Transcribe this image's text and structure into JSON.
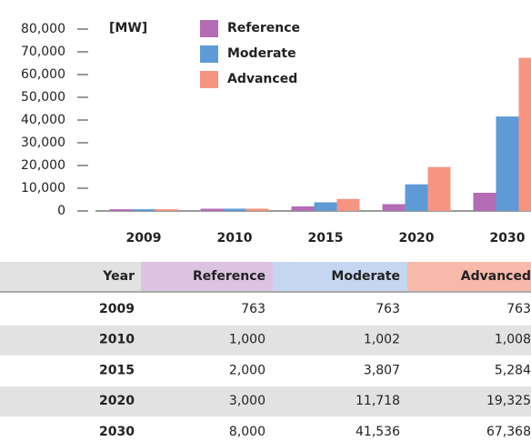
{
  "chart_data": {
    "type": "bar",
    "unit_label": "[MW]",
    "categories": [
      "2009",
      "2010",
      "2015",
      "2020",
      "2030"
    ],
    "series": [
      {
        "name": "Reference",
        "color": "#b46cb4",
        "values": [
          763,
          1000,
          2000,
          3000,
          8000
        ]
      },
      {
        "name": "Moderate",
        "color": "#5e9bd6",
        "values": [
          763,
          1002,
          3807,
          11718,
          41536
        ]
      },
      {
        "name": "Advanced",
        "color": "#f69482",
        "values": [
          763,
          1008,
          5284,
          19325,
          67368
        ]
      }
    ],
    "ylim": [
      0,
      80000
    ],
    "yticks": [
      0,
      {
        "value": 10000,
        "label": "10,000"
      },
      {
        "value": 20000,
        "label": "20,000"
      },
      {
        "value": 30000,
        "label": "30,000"
      },
      {
        "value": 40000,
        "label": "40,000"
      },
      {
        "value": 50000,
        "label": "50,000"
      },
      {
        "value": 60000,
        "label": "60,000"
      },
      {
        "value": 70000,
        "label": "70,000"
      },
      {
        "value": 80000,
        "label": "80,000"
      }
    ]
  },
  "table": {
    "header": [
      "Year",
      "Reference",
      "Moderate",
      "Advanced"
    ],
    "header_colors": [
      "#e2e2e2",
      "#dcc3e2",
      "#c5d6f0",
      "#f8b9aa"
    ],
    "rows": [
      [
        "2009",
        "763",
        "763",
        "763"
      ],
      [
        "2010",
        "1,000",
        "1,002",
        "1,008"
      ],
      [
        "2015",
        "2,000",
        "3,807",
        "5,284"
      ],
      [
        "2020",
        "3,000",
        "11,718",
        "19,325"
      ],
      [
        "2030",
        "8,000",
        "41,536",
        "67,368"
      ]
    ]
  }
}
